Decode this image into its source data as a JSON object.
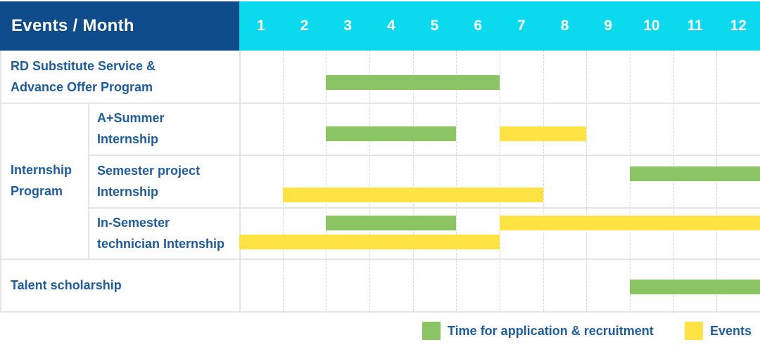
{
  "header": {
    "title": "Events / Month",
    "months": [
      "1",
      "2",
      "3",
      "4",
      "5",
      "6",
      "7",
      "8",
      "9",
      "10",
      "11",
      "12"
    ]
  },
  "colors": {
    "navy": "#0E4C8B",
    "cyan": "#0BD9EE",
    "green": "#8BC463",
    "yellow": "#FFE345",
    "label_blue": "#1D5C9F",
    "grid_solid": "#E4E4E4",
    "grid_dashed": "#D7D7D7"
  },
  "legend": {
    "items": [
      {
        "series": "application",
        "label": "Time for application & recruitment",
        "color": "#8BC463"
      },
      {
        "series": "events",
        "label": "Events",
        "color": "#FFE345"
      }
    ]
  },
  "chart_data": {
    "type": "bar",
    "variant": "gantt-month-timeline",
    "title": "Events / Month",
    "x_categories": [
      "1",
      "2",
      "3",
      "4",
      "5",
      "6",
      "7",
      "8",
      "9",
      "10",
      "11",
      "12"
    ],
    "x_unit": "month",
    "x_range": [
      1,
      12
    ],
    "grid": true,
    "legend_position": "bottom-right",
    "series_names": {
      "application": "Time for application & recruitment",
      "events": "Events"
    },
    "group_cells": [
      {
        "label": "Internship Program",
        "label_lines": [
          "Internship",
          "Program"
        ],
        "row_span": [
          2,
          4
        ]
      }
    ],
    "rows": [
      {
        "id": "rd-substitute-service",
        "group": null,
        "label": "RD Substitute Service & Advance Offer Program",
        "label_lines": [
          "RD Substitute Service &",
          "Advance Offer Program"
        ],
        "bars": [
          {
            "series": "application",
            "start_month": 3,
            "end_month": 6,
            "lane": 0
          }
        ]
      },
      {
        "id": "a-plus-summer-internship",
        "group": "Internship Program",
        "label": "A+Summer Internship",
        "label_lines": [
          "A+Summer",
          "Internship"
        ],
        "bars": [
          {
            "series": "application",
            "start_month": 3,
            "end_month": 5,
            "lane": 0
          },
          {
            "series": "events",
            "start_month": 7,
            "end_month": 8,
            "lane": 0
          }
        ]
      },
      {
        "id": "semester-project-internship",
        "group": "Internship Program",
        "label": "Semester project Internship",
        "label_lines": [
          "Semester project",
          "Internship"
        ],
        "bars": [
          {
            "series": "application",
            "start_month": 10,
            "end_month": 12,
            "lane": 0
          },
          {
            "series": "events",
            "start_month": 2,
            "end_month": 7,
            "lane": 1
          }
        ]
      },
      {
        "id": "in-semester-technician-internship",
        "group": "Internship Program",
        "label": "In-Semester technician Internship",
        "label_lines": [
          "In-Semester",
          "technician Internship"
        ],
        "bars": [
          {
            "series": "application",
            "start_month": 3,
            "end_month": 5,
            "lane": 0
          },
          {
            "series": "events",
            "start_month": 7,
            "end_month": 12,
            "lane": 0
          },
          {
            "series": "events",
            "start_month": 1,
            "end_month": 6,
            "lane": 1
          }
        ]
      },
      {
        "id": "talent-scholarship",
        "group": null,
        "label": "Talent scholarship",
        "label_lines": [
          "Talent scholarship"
        ],
        "bars": [
          {
            "series": "application",
            "start_month": 10,
            "end_month": 12,
            "lane": 0
          }
        ]
      }
    ]
  }
}
